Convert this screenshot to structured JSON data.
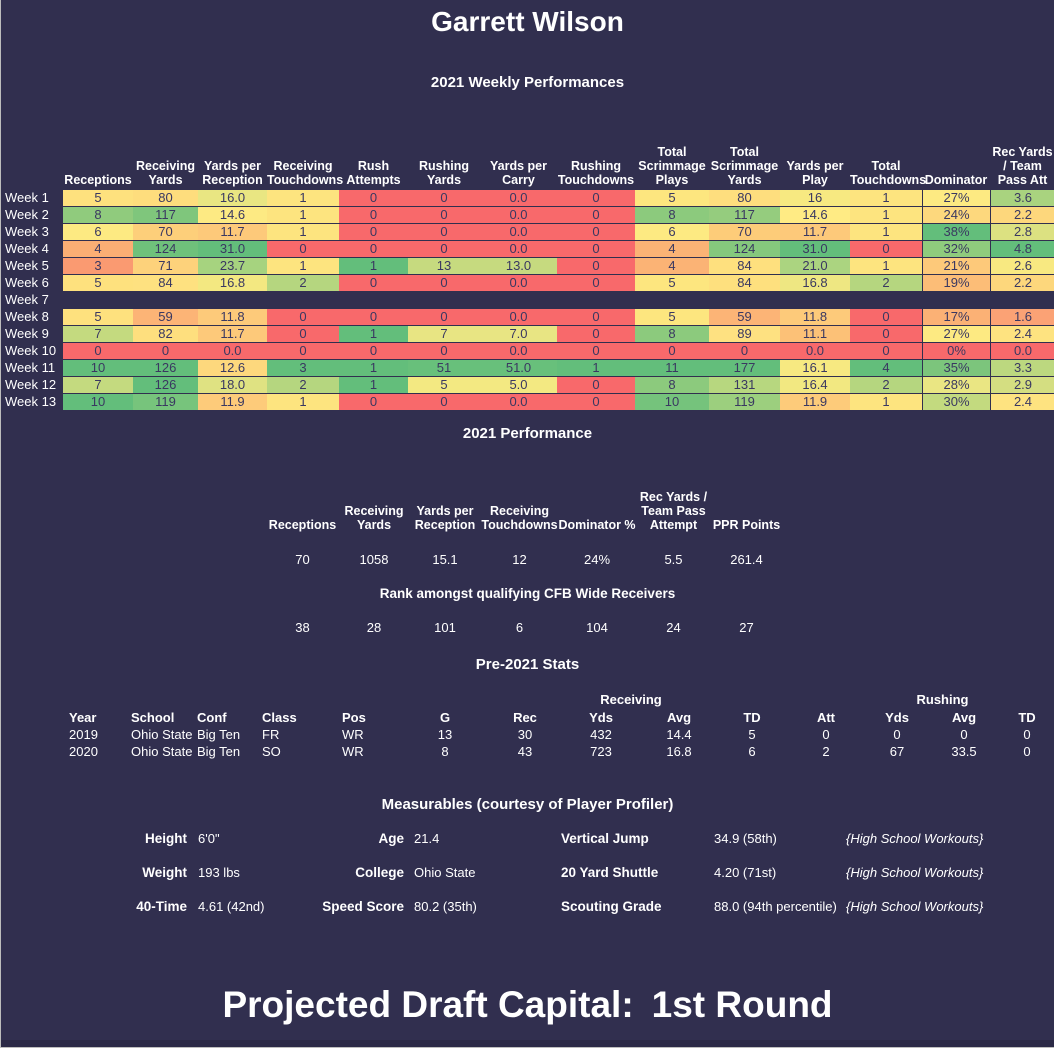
{
  "colors": {
    "background": "#312f4f",
    "heat_red": "#f8696b",
    "heat_yellow": "#ffeb84",
    "heat_green": "#63be7b",
    "text": "#ffffff",
    "cell_text": "#3a3861"
  },
  "header": {
    "player_name": "Garrett Wilson"
  },
  "weekly": {
    "title": "2021 Weekly Performances",
    "columns": [
      "Receptions",
      "Receiving\nYards",
      "Yards per\nReception",
      "Receiving\nTouchdowns",
      "Rush\nAttempts",
      "Rushing\nYards",
      "Yards per\nCarry",
      "Rushing\nTouchdowns",
      "Total\nScrimmage\nPlays",
      "Total\nScrimmage\nYards",
      "Yards per\nPlay",
      "Total\nTouchdowns",
      "Dominator",
      "Rec Yards\n/ Team\nPass Att"
    ],
    "rows": [
      {
        "label": "Week 1",
        "cells": [
          [
            "5",
            "#fee17e"
          ],
          [
            "80",
            "#fedd7d"
          ],
          [
            "16.0",
            "#e9e682"
          ],
          [
            "1",
            "#fde47f"
          ],
          [
            "0",
            "#f8696b"
          ],
          [
            "0",
            "#f8696b"
          ],
          [
            "0.0",
            "#f8696b"
          ],
          [
            "0",
            "#f8696b"
          ],
          [
            "5",
            "#fde67f"
          ],
          [
            "80",
            "#fede7e"
          ],
          [
            "16",
            "#f7e981"
          ],
          [
            "1",
            "#fde47f"
          ],
          [
            "27%",
            "#fdea82"
          ],
          [
            "3.6",
            "#a9d37f"
          ]
        ]
      },
      {
        "label": "Week 2",
        "cells": [
          [
            "8",
            "#90cb7d"
          ],
          [
            "117",
            "#7fc67c"
          ],
          [
            "14.6",
            "#fdea83"
          ],
          [
            "1",
            "#fde47f"
          ],
          [
            "0",
            "#f8696b"
          ],
          [
            "0",
            "#f8696b"
          ],
          [
            "0.0",
            "#f8696b"
          ],
          [
            "0",
            "#f8696b"
          ],
          [
            "8",
            "#8cca7d"
          ],
          [
            "117",
            "#95cc7e"
          ],
          [
            "14.6",
            "#ffeb84"
          ],
          [
            "1",
            "#fde47f"
          ],
          [
            "24%",
            "#fdd87d"
          ],
          [
            "2.2",
            "#fdd77c"
          ]
        ]
      },
      {
        "label": "Week 3",
        "cells": [
          [
            "6",
            "#fdea82"
          ],
          [
            "70",
            "#fdcf7a"
          ],
          [
            "11.7",
            "#fdc97a"
          ],
          [
            "1",
            "#fde47f"
          ],
          [
            "0",
            "#f8696b"
          ],
          [
            "0",
            "#f8696b"
          ],
          [
            "0.0",
            "#f8696b"
          ],
          [
            "0",
            "#f8696b"
          ],
          [
            "6",
            "#fdea82"
          ],
          [
            "70",
            "#fdcc79"
          ],
          [
            "11.7",
            "#fdc97a"
          ],
          [
            "1",
            "#fde47f"
          ],
          [
            "38%",
            "#63be7b"
          ],
          [
            "2.8",
            "#dce181"
          ]
        ]
      },
      {
        "label": "Week 4",
        "cells": [
          [
            "4",
            "#fbae74"
          ],
          [
            "124",
            "#6fc17b"
          ],
          [
            "31.0",
            "#63be7b"
          ],
          [
            "0",
            "#f8696b"
          ],
          [
            "0",
            "#f8696b"
          ],
          [
            "0",
            "#f8696b"
          ],
          [
            "0.0",
            "#f8696b"
          ],
          [
            "0",
            "#f8696b"
          ],
          [
            "4",
            "#fbb375"
          ],
          [
            "124",
            "#85c87d"
          ],
          [
            "31.0",
            "#63be7b"
          ],
          [
            "0",
            "#f8696b"
          ],
          [
            "32%",
            "#8fcb7d"
          ],
          [
            "4.8",
            "#63be7b"
          ]
        ]
      },
      {
        "label": "Week 5",
        "cells": [
          [
            "3",
            "#fa9a71"
          ],
          [
            "71",
            "#fdd27b"
          ],
          [
            "23.7",
            "#a6d37f"
          ],
          [
            "1",
            "#fde47f"
          ],
          [
            "1",
            "#63be7b"
          ],
          [
            "13",
            "#c6da7f"
          ],
          [
            "13.0",
            "#c6da7f"
          ],
          [
            "0",
            "#f8696b"
          ],
          [
            "4",
            "#fbb375"
          ],
          [
            "84",
            "#fee07e"
          ],
          [
            "21.0",
            "#abd480"
          ],
          [
            "1",
            "#fde47f"
          ],
          [
            "21%",
            "#fdc97a"
          ],
          [
            "2.6",
            "#f8e981"
          ]
        ]
      },
      {
        "label": "Week 6",
        "cells": [
          [
            "5",
            "#fee17e"
          ],
          [
            "84",
            "#fee180"
          ],
          [
            "16.8",
            "#f3e881"
          ],
          [
            "2",
            "#b5d67f"
          ],
          [
            "0",
            "#f8696b"
          ],
          [
            "0",
            "#f8696b"
          ],
          [
            "0.0",
            "#f8696b"
          ],
          [
            "0",
            "#f8696b"
          ],
          [
            "5",
            "#fde67f"
          ],
          [
            "84",
            "#fee07e"
          ],
          [
            "16.8",
            "#eee782"
          ],
          [
            "2",
            "#b5d67f"
          ],
          [
            "19%",
            "#fcbd77"
          ],
          [
            "2.2",
            "#fdd77c"
          ]
        ]
      },
      {
        "label": "Week 7",
        "cells": []
      },
      {
        "label": "Week 8",
        "cells": [
          [
            "5",
            "#fee17e"
          ],
          [
            "59",
            "#fcb476"
          ],
          [
            "11.8",
            "#fdca7a"
          ],
          [
            "0",
            "#f8696b"
          ],
          [
            "0",
            "#f8696b"
          ],
          [
            "0",
            "#f8696b"
          ],
          [
            "0.0",
            "#f8696b"
          ],
          [
            "0",
            "#f8696b"
          ],
          [
            "5",
            "#fde67f"
          ],
          [
            "59",
            "#fcb476"
          ],
          [
            "11.8",
            "#fdca7a"
          ],
          [
            "0",
            "#f8696b"
          ],
          [
            "17%",
            "#fbb175"
          ],
          [
            "1.6",
            "#fba275"
          ]
        ]
      },
      {
        "label": "Week 9",
        "cells": [
          [
            "7",
            "#c4da7f"
          ],
          [
            "82",
            "#fedf7e"
          ],
          [
            "11.7",
            "#fdc97a"
          ],
          [
            "0",
            "#f8696b"
          ],
          [
            "1",
            "#63be7b"
          ],
          [
            "7",
            "#e8e583"
          ],
          [
            "7.0",
            "#e8e583"
          ],
          [
            "0",
            "#f8696b"
          ],
          [
            "8",
            "#8cca7d"
          ],
          [
            "89",
            "#fee181"
          ],
          [
            "11.1",
            "#fcc177"
          ],
          [
            "0",
            "#f8696b"
          ],
          [
            "27%",
            "#fdea82"
          ],
          [
            "2.4",
            "#fee380"
          ]
        ]
      },
      {
        "label": "Week 10",
        "cells": [
          [
            "0",
            "#f8696b"
          ],
          [
            "0",
            "#f8696b"
          ],
          [
            "0.0",
            "#f8696b"
          ],
          [
            "0",
            "#f8696b"
          ],
          [
            "0",
            "#f8696b"
          ],
          [
            "0",
            "#f8696b"
          ],
          [
            "0.0",
            "#f8696b"
          ],
          [
            "0",
            "#f8696b"
          ],
          [
            "0",
            "#f8696b"
          ],
          [
            "0",
            "#f8696b"
          ],
          [
            "0.0",
            "#f8696b"
          ],
          [
            "0",
            "#f8696b"
          ],
          [
            "0%",
            "#f8696b"
          ],
          [
            "0.0",
            "#f8696b"
          ]
        ]
      },
      {
        "label": "Week 11",
        "cells": [
          [
            "10",
            "#63be7b"
          ],
          [
            "126",
            "#63be7b"
          ],
          [
            "12.6",
            "#fdd87d"
          ],
          [
            "3",
            "#63be7b"
          ],
          [
            "1",
            "#63be7b"
          ],
          [
            "51",
            "#68c07b"
          ],
          [
            "51.0",
            "#68c07b"
          ],
          [
            "1",
            "#63be7b"
          ],
          [
            "11",
            "#63be7b"
          ],
          [
            "177",
            "#63be7b"
          ],
          [
            "16.1",
            "#f7e981"
          ],
          [
            "4",
            "#63be7b"
          ],
          [
            "35%",
            "#7cc57c"
          ],
          [
            "3.3",
            "#bcd87f"
          ]
        ]
      },
      {
        "label": "Week 12",
        "cells": [
          [
            "7",
            "#c4da7f"
          ],
          [
            "126",
            "#63be7b"
          ],
          [
            "18.0",
            "#dfe282"
          ],
          [
            "2",
            "#b5d67f"
          ],
          [
            "1",
            "#63be7b"
          ],
          [
            "5",
            "#f3e982"
          ],
          [
            "5.0",
            "#f3e982"
          ],
          [
            "0",
            "#f8696b"
          ],
          [
            "8",
            "#8cca7d"
          ],
          [
            "131",
            "#b7d77f"
          ],
          [
            "16.4",
            "#f2e881"
          ],
          [
            "2",
            "#b5d67f"
          ],
          [
            "28%",
            "#eae683"
          ],
          [
            "2.9",
            "#d4de81"
          ]
        ]
      },
      {
        "label": "Week 13",
        "cells": [
          [
            "10",
            "#63be7b"
          ],
          [
            "119",
            "#77c47c"
          ],
          [
            "11.9",
            "#fdcb7a"
          ],
          [
            "1",
            "#fde47f"
          ],
          [
            "0",
            "#f8696b"
          ],
          [
            "0",
            "#f8696b"
          ],
          [
            "0.0",
            "#f8696b"
          ],
          [
            "0",
            "#f8696b"
          ],
          [
            "10",
            "#75c37c"
          ],
          [
            "119",
            "#9ccf7e"
          ],
          [
            "11.9",
            "#fdcb7a"
          ],
          [
            "1",
            "#fde47f"
          ],
          [
            "30%",
            "#c3da7f"
          ],
          [
            "2.4",
            "#fee380"
          ]
        ]
      }
    ]
  },
  "season": {
    "title": "2021 Performance",
    "columns": [
      "Receptions",
      "Receiving\nYards",
      "Yards per\nReception",
      "Receiving\nTouchdowns",
      "Dominator %",
      "Rec Yards /\nTeam Pass\nAttempt",
      "PPR Points"
    ],
    "values": [
      "70",
      "1058",
      "15.1",
      "12",
      "24%",
      "5.5",
      "261.4"
    ],
    "rank_title": "Rank amongst qualifying CFB Wide Receivers",
    "ranks": [
      "38",
      "28",
      "101",
      "6",
      "104",
      "24",
      "27"
    ]
  },
  "pre2021": {
    "title": "Pre-2021 Stats",
    "group_receiving": "Receiving",
    "group_rushing": "Rushing",
    "headers": [
      "Year",
      "School",
      "Conf",
      "Class",
      "Pos",
      "G",
      "Rec",
      "Yds",
      "Avg",
      "TD",
      "Att",
      "Yds",
      "Avg",
      "TD"
    ],
    "rows": [
      [
        "2019",
        "Ohio State",
        "Big Ten",
        "FR",
        "WR",
        "13",
        "30",
        "432",
        "14.4",
        "5",
        "0",
        "0",
        "0",
        "0"
      ],
      [
        "2020",
        "Ohio State",
        "Big Ten",
        "SO",
        "WR",
        "8",
        "43",
        "723",
        "16.8",
        "6",
        "2",
        "67",
        "33.5",
        "0"
      ]
    ]
  },
  "measurables": {
    "title": "Measurables (courtesy of Player Profiler)",
    "rows": [
      {
        "l1": "Height",
        "v1": "6'0\"",
        "l2": "Age",
        "v2": "21.4",
        "l3": "Vertical Jump",
        "v3": "34.9 (58th)",
        "note": "{High School Workouts}"
      },
      {
        "l1": "Weight",
        "v1": "193 lbs",
        "l2": "College",
        "v2": "Ohio State",
        "l3": "20 Yard Shuttle",
        "v3": "4.20 (71st)",
        "note": "{High School Workouts}"
      },
      {
        "l1": "40-Time",
        "v1": "4.61 (42nd)",
        "l2": "Speed Score",
        "v2": "80.2 (35th)",
        "l3": "Scouting Grade",
        "v3": "88.0 (94th percentile)",
        "note": "{High School Workouts}"
      }
    ]
  },
  "footer": {
    "label": "Projected Draft Capital:",
    "value": "1st Round"
  }
}
